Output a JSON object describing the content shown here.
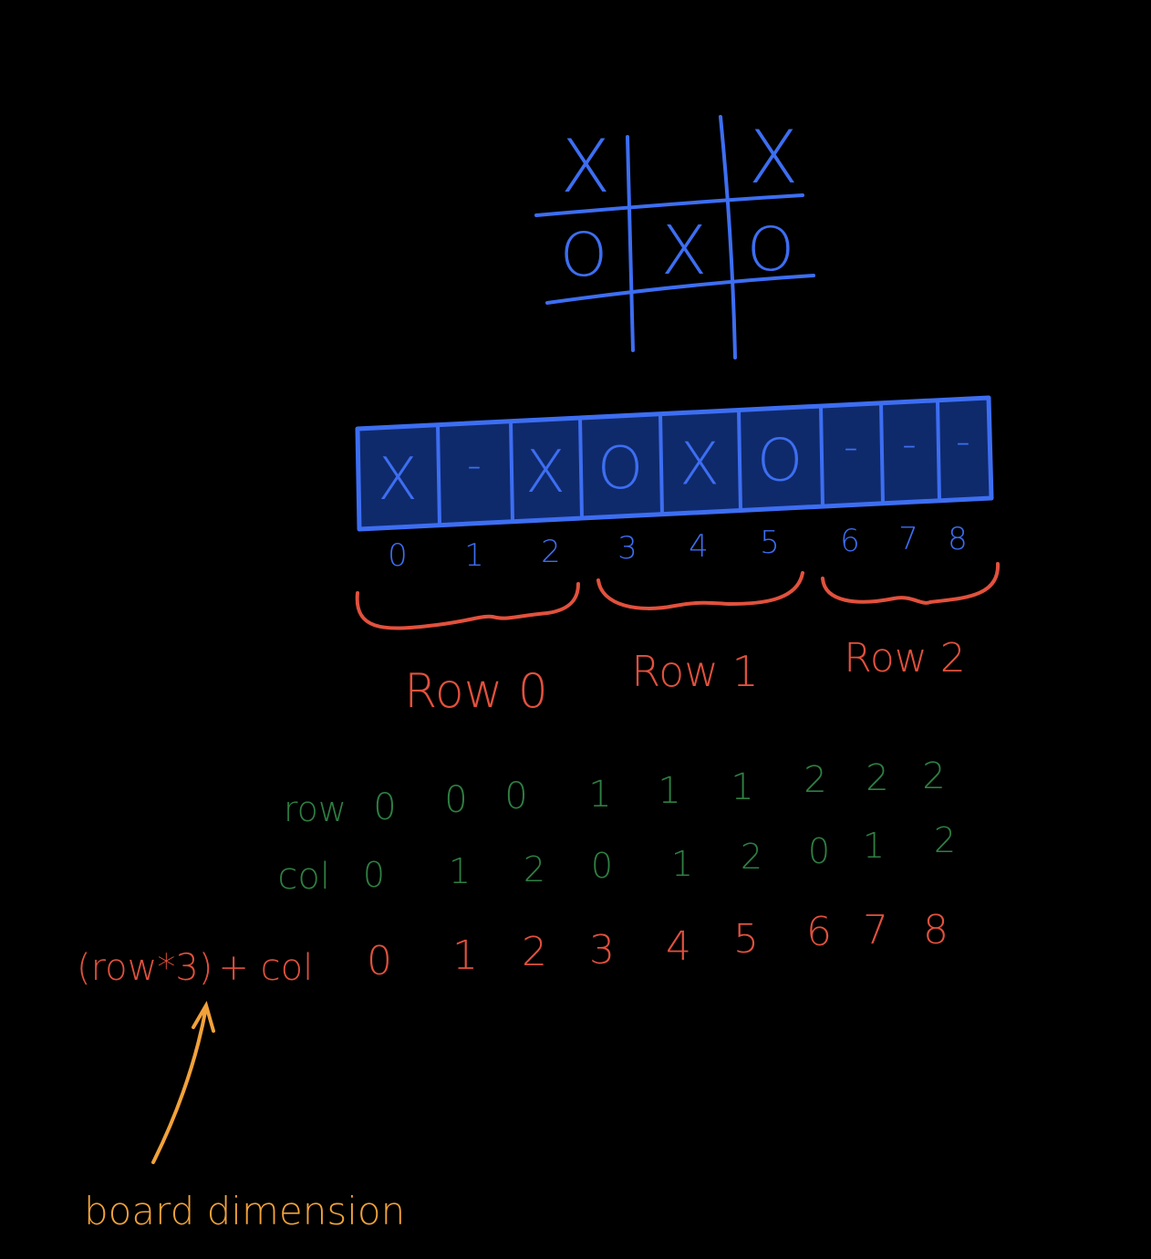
{
  "colors": {
    "background": "#000000",
    "board": "#3d6ef2",
    "array_fill": "#0f2a6b",
    "brace": "#e2513d",
    "row_col": "#2e7f42",
    "formula": "#e2513d",
    "note": "#f2a23a"
  },
  "board": {
    "cells": [
      "X",
      "",
      "X",
      "O",
      "X",
      "O",
      "",
      "",
      ""
    ]
  },
  "array": {
    "cells": [
      "X",
      "-",
      "X",
      "O",
      "X",
      "O",
      "-",
      "-",
      "-"
    ],
    "indices": [
      "0",
      "1",
      "2",
      "3",
      "4",
      "5",
      "6",
      "7",
      "8"
    ]
  },
  "groups": [
    {
      "label": "Row 0"
    },
    {
      "label": "Row 1"
    },
    {
      "label": "Row 2"
    }
  ],
  "table": {
    "row_label": "row",
    "row_values": [
      "0",
      "0",
      "0",
      "1",
      "1",
      "1",
      "2",
      "2",
      "2"
    ],
    "col_label": "col",
    "col_values": [
      "0",
      "1",
      "2",
      "0",
      "1",
      "2",
      "0",
      "1",
      "2"
    ],
    "formula_label_part1": "(row*3)",
    "formula_label_part2": "+ col",
    "formula_values": [
      "0",
      "1",
      "2",
      "3",
      "4",
      "5",
      "6",
      "7",
      "8"
    ]
  },
  "note": {
    "text": "board dimension",
    "arrow_icon": "arrow-up-icon"
  }
}
